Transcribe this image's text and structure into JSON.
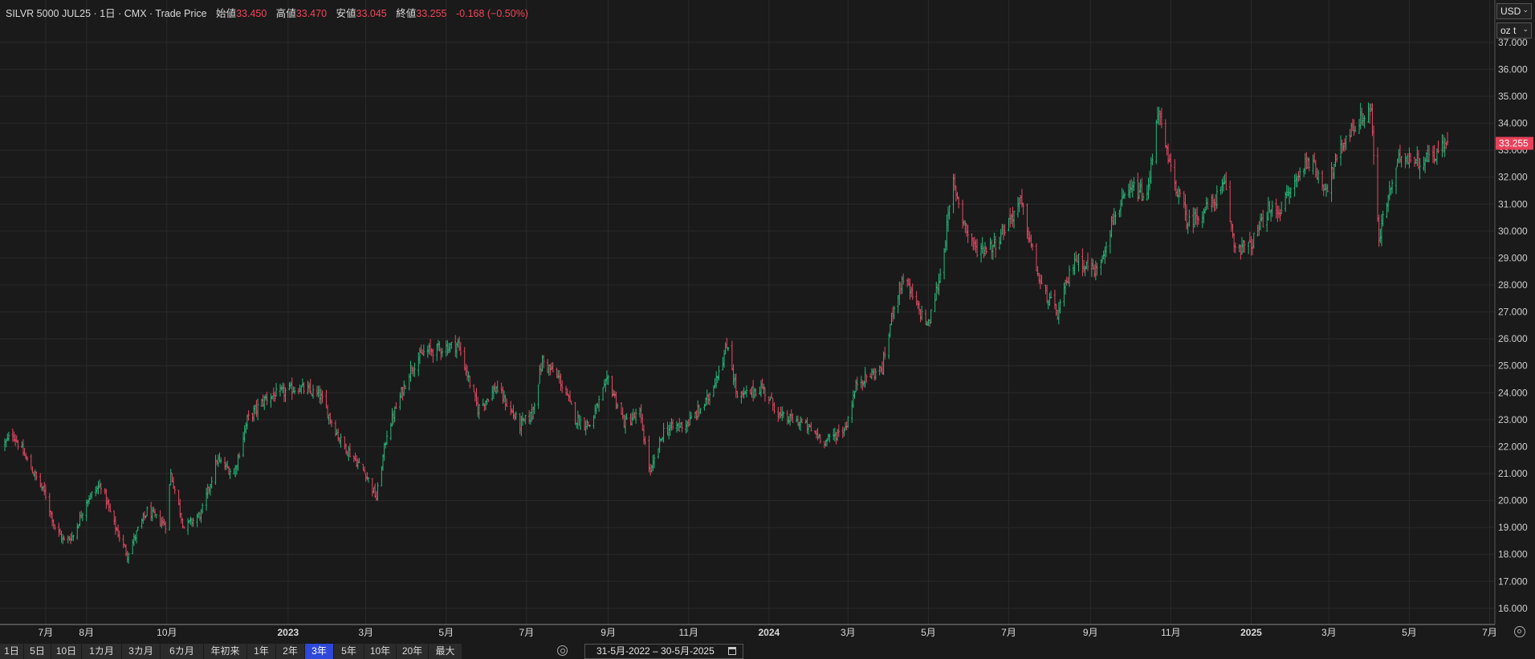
{
  "header": {
    "symbol": "SILVR 5000 JUL25 · 1日 · CMX · Trade Price",
    "open_label": "始値",
    "open": "33.450",
    "high_label": "高値",
    "high": "33.470",
    "low_label": "安値",
    "low": "33.045",
    "close_label": "終値",
    "close": "33.255",
    "change": "-0.168 (−0.50%)"
  },
  "currency_select": "USD",
  "unit_select": "oz t",
  "price_badge": "33.255",
  "colors": {
    "background": "#1a1a1a",
    "up": "#26b87a",
    "down": "#e24a64",
    "badge": "#e8425a",
    "active": "#2e48d9",
    "grid": "#2a2a2a"
  },
  "range_buttons": [
    "1日",
    "5日",
    "10日",
    "1カ月",
    "3カ月",
    "6カ月",
    "年初来",
    "1年",
    "2年",
    "3年",
    "5年",
    "10年",
    "20年",
    "最大"
  ],
  "active_range": "3年",
  "date_range": "31-5月-2022 – 30-5月-2025",
  "icons": [
    "settings-icon",
    "calendar-icon",
    "chevron-down-icon"
  ],
  "chart_data": {
    "type": "ohlc",
    "x_ticks": [
      {
        "label": "7月",
        "date": "2022-07-01"
      },
      {
        "label": "8月",
        "date": "2022-08-01"
      },
      {
        "label": "10月",
        "date": "2022-10-01"
      },
      {
        "label": "2023",
        "date": "2023-01-01"
      },
      {
        "label": "3月",
        "date": "2023-03-01"
      },
      {
        "label": "5月",
        "date": "2023-05-01"
      },
      {
        "label": "7月",
        "date": "2023-07-01"
      },
      {
        "label": "9月",
        "date": "2023-09-01"
      },
      {
        "label": "11月",
        "date": "2023-11-01"
      },
      {
        "label": "2024",
        "date": "2024-01-01"
      },
      {
        "label": "3月",
        "date": "2024-03-01"
      },
      {
        "label": "5月",
        "date": "2024-05-01"
      },
      {
        "label": "7月",
        "date": "2024-07-01"
      },
      {
        "label": "9月",
        "date": "2024-09-01"
      },
      {
        "label": "11月",
        "date": "2024-11-01"
      },
      {
        "label": "2025",
        "date": "2025-01-01"
      },
      {
        "label": "3月",
        "date": "2025-03-01"
      },
      {
        "label": "5月",
        "date": "2025-05-01"
      },
      {
        "label": "7月",
        "date": "2025-07-01"
      }
    ],
    "y_ticks": [
      "16.000",
      "17.000",
      "18.000",
      "19.000",
      "20.000",
      "21.000",
      "22.000",
      "23.000",
      "24.000",
      "25.000",
      "26.000",
      "27.000",
      "28.000",
      "29.000",
      "30.000",
      "31.000",
      "32.000",
      "33.000",
      "34.000",
      "35.000",
      "36.000",
      "37.000"
    ],
    "ylim": [
      15.4,
      37.8
    ],
    "x_range": [
      "2022-05-31",
      "2025-05-30"
    ],
    "grid": true,
    "close_path": [
      [
        "2022-05-31",
        22.1
      ],
      [
        "2022-06-06",
        22.5
      ],
      [
        "2022-06-20",
        21.2
      ],
      [
        "2022-07-01",
        20.2
      ],
      [
        "2022-07-08",
        19.0
      ],
      [
        "2022-07-15",
        18.5
      ],
      [
        "2022-07-22",
        18.7
      ],
      [
        "2022-08-01",
        20.0
      ],
      [
        "2022-08-12",
        20.6
      ],
      [
        "2022-08-22",
        19.1
      ],
      [
        "2022-09-01",
        18.0
      ],
      [
        "2022-09-09",
        18.9
      ],
      [
        "2022-09-16",
        19.6
      ],
      [
        "2022-09-30",
        19.1
      ],
      [
        "2022-10-04",
        21.0
      ],
      [
        "2022-10-14",
        19.0
      ],
      [
        "2022-10-27",
        19.5
      ],
      [
        "2022-11-08",
        21.5
      ],
      [
        "2022-11-21",
        21.0
      ],
      [
        "2022-12-01",
        23.0
      ],
      [
        "2022-12-15",
        23.8
      ],
      [
        "2023-01-09",
        24.2
      ],
      [
        "2023-01-25",
        23.9
      ],
      [
        "2023-02-10",
        22.2
      ],
      [
        "2023-03-01",
        21.0
      ],
      [
        "2023-03-09",
        20.1
      ],
      [
        "2023-03-17",
        22.5
      ],
      [
        "2023-04-04",
        24.9
      ],
      [
        "2023-04-14",
        25.5
      ],
      [
        "2023-05-02",
        25.7
      ],
      [
        "2023-05-10",
        25.8
      ],
      [
        "2023-05-25",
        23.4
      ],
      [
        "2023-06-08",
        24.2
      ],
      [
        "2023-06-26",
        22.8
      ],
      [
        "2023-07-05",
        23.2
      ],
      [
        "2023-07-13",
        25.2
      ],
      [
        "2023-07-26",
        24.5
      ],
      [
        "2023-08-08",
        23.0
      ],
      [
        "2023-08-18",
        22.8
      ],
      [
        "2023-09-01",
        24.5
      ],
      [
        "2023-09-13",
        22.9
      ],
      [
        "2023-09-25",
        23.2
      ],
      [
        "2023-10-03",
        21.0
      ],
      [
        "2023-10-13",
        22.6
      ],
      [
        "2023-11-01",
        22.9
      ],
      [
        "2023-11-15",
        23.7
      ],
      [
        "2023-12-01",
        25.8
      ],
      [
        "2023-12-08",
        23.8
      ],
      [
        "2023-12-27",
        24.2
      ],
      [
        "2024-01-10",
        23.1
      ],
      [
        "2024-01-25",
        22.9
      ],
      [
        "2024-02-13",
        22.2
      ],
      [
        "2024-02-28",
        22.7
      ],
      [
        "2024-03-08",
        24.4
      ],
      [
        "2024-03-27",
        24.9
      ],
      [
        "2024-04-05",
        27.3
      ],
      [
        "2024-04-12",
        28.3
      ],
      [
        "2024-04-22",
        27.2
      ],
      [
        "2024-05-01",
        26.5
      ],
      [
        "2024-05-10",
        28.4
      ],
      [
        "2024-05-20",
        31.8
      ],
      [
        "2024-05-30",
        30.0
      ],
      [
        "2024-06-06",
        29.3
      ],
      [
        "2024-06-20",
        29.5
      ],
      [
        "2024-07-10",
        31.1
      ],
      [
        "2024-07-25",
        28.0
      ],
      [
        "2024-08-07",
        26.9
      ],
      [
        "2024-08-20",
        29.0
      ],
      [
        "2024-09-06",
        28.5
      ],
      [
        "2024-09-20",
        30.7
      ],
      [
        "2024-10-04",
        31.6
      ],
      [
        "2024-10-14",
        31.2
      ],
      [
        "2024-10-22",
        34.5
      ],
      [
        "2024-10-31",
        32.4
      ],
      [
        "2024-11-14",
        30.3
      ],
      [
        "2024-12-02",
        31.0
      ],
      [
        "2024-12-12",
        31.7
      ],
      [
        "2024-12-19",
        29.5
      ],
      [
        "2024-12-31",
        29.4
      ],
      [
        "2025-01-13",
        30.7
      ],
      [
        "2025-01-23",
        30.8
      ],
      [
        "2025-02-13",
        32.7
      ],
      [
        "2025-02-27",
        31.6
      ],
      [
        "2025-03-14",
        33.5
      ],
      [
        "2025-03-26",
        34.2
      ],
      [
        "2025-04-02",
        34.5
      ],
      [
        "2025-04-08",
        29.5
      ],
      [
        "2025-04-11",
        30.6
      ],
      [
        "2025-04-25",
        32.9
      ],
      [
        "2025-05-08",
        32.6
      ],
      [
        "2025-05-19",
        32.8
      ],
      [
        "2025-05-30",
        33.255
      ]
    ],
    "highest_shown": 35.5,
    "lowest_shown": 17.5
  }
}
